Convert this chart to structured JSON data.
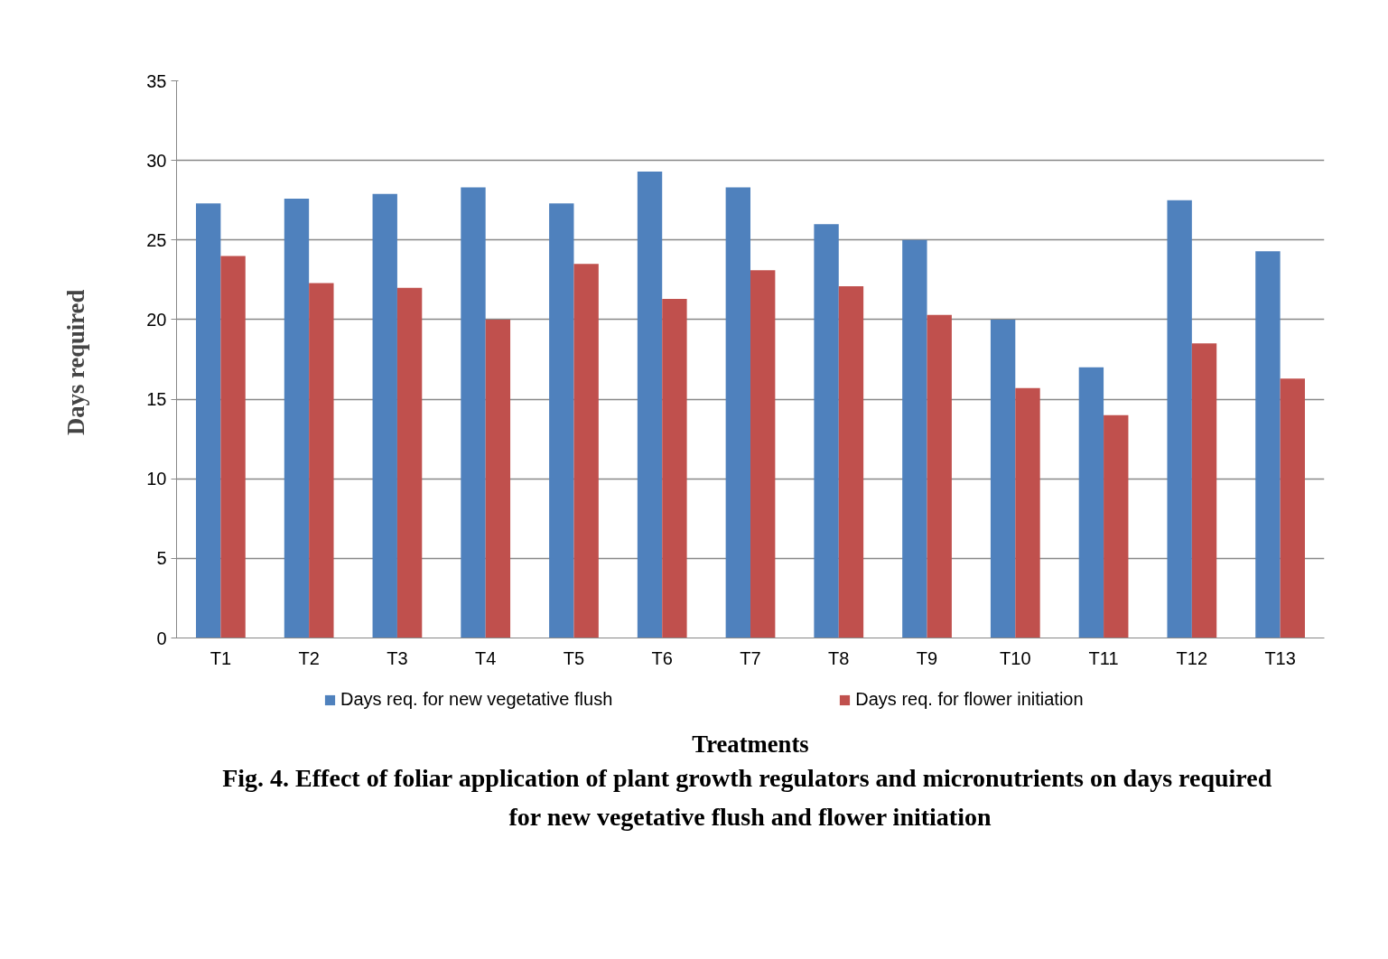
{
  "chart_data": {
    "type": "bar",
    "title": "Fig. 4. Effect of foliar application of  plant growth regulators and micronutrients on days required for new vegetative flush and flower initiation",
    "xlabel": "Treatments",
    "ylabel": "Days  required",
    "categories": [
      "T1",
      "T2",
      "T3",
      "T4",
      "T5",
      "T6",
      "T7",
      "T8",
      "T9",
      "T10",
      "T11",
      "T12",
      "T13"
    ],
    "series": [
      {
        "name": "Days req. for new vegetative flush",
        "color": "#4f81bd",
        "values": [
          27.3,
          27.6,
          27.9,
          28.3,
          27.3,
          29.3,
          28.3,
          26.0,
          25.0,
          20.0,
          17.0,
          27.5,
          24.3
        ]
      },
      {
        "name": "Days req. for flower initiation",
        "color": "#c0504d",
        "values": [
          24.0,
          22.3,
          22.0,
          20.0,
          23.5,
          21.3,
          23.1,
          22.1,
          20.3,
          15.7,
          14.0,
          18.5,
          16.3
        ]
      }
    ],
    "ylim": [
      0,
      35
    ],
    "yticks": [
      0,
      5,
      10,
      15,
      20,
      25,
      30,
      35
    ],
    "grid": "y",
    "legend": "bottom"
  }
}
